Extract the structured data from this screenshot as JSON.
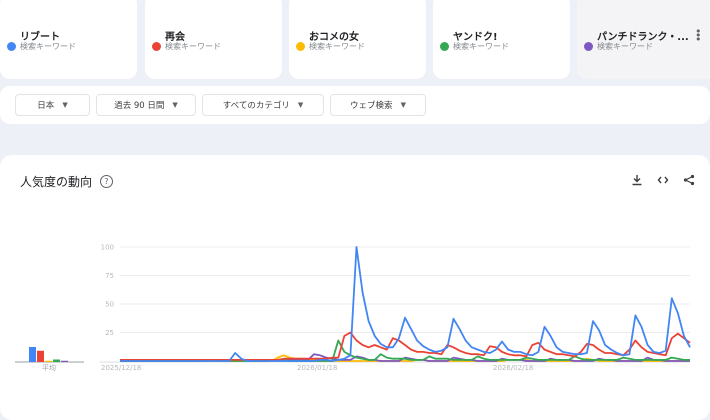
{
  "keywords": [
    {
      "title": "リブート",
      "subtitle": "検索キーワード",
      "color": "#4285f4"
    },
    {
      "title": "再会",
      "subtitle": "検索キーワード",
      "color": "#ea4335"
    },
    {
      "title": "おコメの女",
      "subtitle": "検索キーワード",
      "color": "#fbbc04"
    },
    {
      "title": "ヤンドク!",
      "subtitle": "検索キーワード",
      "color": "#34a853"
    },
    {
      "title": "パンチドランク・...",
      "subtitle": "検索キーワード",
      "color": "#7e57c2"
    }
  ],
  "filters": [
    {
      "label": "日本",
      "caret": "▼"
    },
    {
      "label": "過去 90 日間",
      "caret": "▼"
    },
    {
      "label": "すべてのカテゴリ",
      "caret": "▼"
    },
    {
      "label": "ウェブ検索",
      "caret": "▼"
    }
  ],
  "panel": {
    "title": "人気度の動向",
    "help_icon": "?",
    "actions": {
      "download": "⤓",
      "embed": "‹›",
      "share": "share"
    }
  },
  "average_label": "平均",
  "chart_data": {
    "type": "line",
    "title": "人気度の動向",
    "xlabel": "",
    "ylabel": "",
    "ylim": [
      0,
      100
    ],
    "yticks": [
      25,
      50,
      75,
      100
    ],
    "xtick_labels": [
      "2025/12/18",
      "2026/01/18",
      "2026/02/18"
    ],
    "grid": true,
    "legend": "top cards",
    "averages": {
      "リブート": 12,
      "再会": 9,
      "おコメの女": 1,
      "ヤンドク!": 2,
      "パンチドランク・...": 1
    },
    "series": [
      {
        "name": "リブート",
        "color": "#4285f4",
        "values": [
          0,
          0,
          0,
          0,
          0,
          0,
          0,
          0,
          0,
          0,
          0,
          0,
          0,
          0,
          0,
          0,
          0,
          0,
          0,
          7,
          2,
          0,
          0,
          0,
          0,
          0,
          0,
          0,
          0,
          0,
          0,
          0,
          0,
          1,
          1,
          0,
          1,
          2,
          5,
          100,
          60,
          35,
          22,
          15,
          12,
          12,
          20,
          38,
          28,
          18,
          13,
          10,
          8,
          9,
          12,
          37,
          28,
          18,
          12,
          10,
          8,
          7,
          10,
          17,
          10,
          8,
          8,
          6,
          5,
          8,
          30,
          22,
          12,
          8,
          7,
          6,
          6,
          7,
          35,
          27,
          14,
          10,
          7,
          5,
          6,
          40,
          30,
          14,
          8,
          7,
          9,
          55,
          42,
          22,
          12
        ]
      },
      {
        "name": "再会",
        "color": "#ea4335",
        "values": [
          1,
          1,
          1,
          1,
          1,
          1,
          1,
          1,
          1,
          1,
          1,
          1,
          1,
          1,
          1,
          1,
          1,
          1,
          1,
          1,
          1,
          1,
          1,
          1,
          1,
          1,
          1,
          2,
          2,
          2,
          2,
          2,
          2,
          2,
          2,
          3,
          3,
          22,
          25,
          18,
          14,
          12,
          14,
          12,
          10,
          20,
          18,
          14,
          10,
          8,
          8,
          7,
          7,
          6,
          14,
          12,
          9,
          7,
          6,
          6,
          5,
          13,
          12,
          8,
          6,
          5,
          5,
          4,
          14,
          16,
          10,
          8,
          6,
          6,
          5,
          4,
          8,
          15,
          14,
          10,
          7,
          7,
          6,
          5,
          10,
          18,
          12,
          8,
          7,
          6,
          5,
          20,
          24,
          20,
          16
        ]
      },
      {
        "name": "おコメの女",
        "color": "#fbbc04",
        "values": [
          0,
          0,
          0,
          0,
          0,
          0,
          0,
          0,
          0,
          0,
          0,
          0,
          0,
          0,
          0,
          0,
          0,
          0,
          0,
          0,
          0,
          0,
          0,
          0,
          0,
          0,
          3,
          5,
          3,
          2,
          2,
          1,
          1,
          0,
          0,
          0,
          0,
          0,
          0,
          0,
          0,
          0,
          0,
          0,
          0,
          0,
          0,
          0,
          0,
          1,
          1,
          0,
          0,
          0,
          0,
          0,
          0,
          0,
          0,
          0,
          0,
          0,
          0,
          0,
          1,
          1,
          1,
          1,
          0,
          0,
          0,
          0,
          0,
          0,
          0,
          0,
          0,
          2,
          1,
          0,
          0,
          0,
          0,
          0,
          0,
          0,
          0,
          0,
          0,
          0,
          0,
          0,
          0,
          0,
          0
        ]
      },
      {
        "name": "ヤンドク!",
        "color": "#34a853",
        "values": [
          0,
          0,
          0,
          0,
          0,
          0,
          0,
          0,
          0,
          0,
          0,
          0,
          0,
          0,
          0,
          1,
          1,
          0,
          0,
          0,
          0,
          0,
          0,
          0,
          0,
          1,
          1,
          1,
          0,
          0,
          0,
          0,
          0,
          0,
          0,
          0,
          18,
          8,
          5,
          3,
          2,
          1,
          1,
          6,
          3,
          2,
          2,
          2,
          1,
          1,
          1,
          4,
          2,
          2,
          2,
          1,
          1,
          1,
          1,
          4,
          2,
          1,
          1,
          1,
          1,
          1,
          1,
          3,
          2,
          1,
          1,
          1,
          1,
          1,
          1,
          4,
          2,
          1,
          1,
          1,
          1,
          1,
          1,
          3,
          2,
          1,
          1,
          1,
          1,
          1,
          1,
          3,
          2,
          1,
          1
        ]
      },
      {
        "name": "パンチドランク・...",
        "color": "#7e57c2",
        "values": [
          1,
          1,
          1,
          1,
          1,
          1,
          1,
          1,
          1,
          1,
          1,
          1,
          1,
          1,
          1,
          1,
          1,
          1,
          1,
          1,
          1,
          1,
          1,
          1,
          1,
          1,
          1,
          1,
          1,
          1,
          1,
          1,
          6,
          5,
          3,
          2,
          1,
          1,
          1,
          4,
          3,
          1,
          1,
          0,
          0,
          0,
          0,
          3,
          2,
          1,
          1,
          0,
          0,
          0,
          0,
          3,
          2,
          1,
          1,
          0,
          0,
          0,
          0,
          2,
          1,
          1,
          1,
          0,
          0,
          0,
          0,
          2,
          1,
          1,
          1,
          0,
          0,
          0,
          0,
          2,
          1,
          1,
          0,
          0,
          0,
          0,
          0,
          3,
          1,
          1,
          0,
          0,
          0,
          0,
          0
        ]
      }
    ]
  }
}
